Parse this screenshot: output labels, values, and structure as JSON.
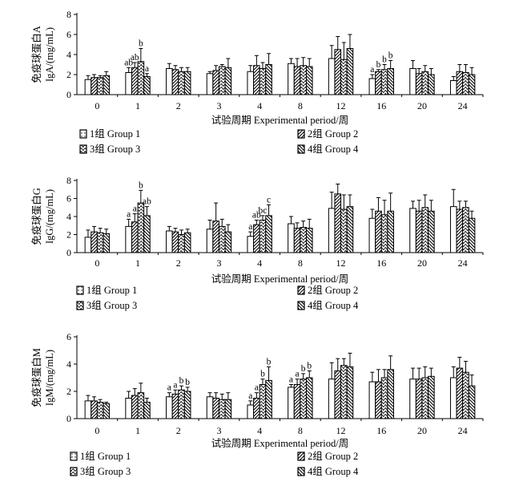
{
  "legend": [
    {
      "label": "1组  Group 1"
    },
    {
      "label": "2组  Group 2"
    },
    {
      "label": "3组  Group 3"
    },
    {
      "label": "4组  Group 4"
    }
  ],
  "chart_data": [
    {
      "type": "bar",
      "ylabel_cn": "免疫球蛋白A",
      "ylabel_en": "IgA/(mg/mL)",
      "xlabel": "试验周期  Experimental period/周",
      "ylim": [
        0,
        8
      ],
      "yticks": [
        0,
        2,
        4,
        6,
        8
      ],
      "categories": [
        "0",
        "1",
        "2",
        "3",
        "4",
        "8",
        "12",
        "16",
        "20",
        "24"
      ],
      "series": [
        {
          "name": "1组  Group 1",
          "values": [
            1.5,
            2.2,
            2.6,
            2.1,
            2.3,
            3.1,
            3.6,
            1.6,
            2.6,
            1.4
          ],
          "errors": [
            0.4,
            0.5,
            0.5,
            0.2,
            0.6,
            0.5,
            1.3,
            0.4,
            0.8,
            0.4
          ],
          "sig": [
            "",
            "ab",
            "",
            "",
            "",
            "",
            "",
            "a",
            "",
            ""
          ]
        },
        {
          "name": "2组  Group 2",
          "values": [
            1.7,
            2.7,
            2.5,
            2.4,
            2.9,
            2.8,
            4.5,
            2.3,
            2.1,
            2.3
          ],
          "errors": [
            0.3,
            0.5,
            0.4,
            0.5,
            1.0,
            0.8,
            1.3,
            0.2,
            0.5,
            0.7
          ],
          "sig": [
            "",
            "ab",
            "",
            "",
            "",
            "",
            "",
            "b",
            "",
            ""
          ]
        },
        {
          "name": "3组  Group 3",
          "values": [
            1.7,
            3.3,
            2.3,
            2.8,
            2.6,
            2.9,
            3.5,
            2.5,
            2.3,
            2.2
          ],
          "errors": [
            0.2,
            1.3,
            0.4,
            0.2,
            0.6,
            0.8,
            1.7,
            0.5,
            0.6,
            0.8
          ],
          "sig": [
            "",
            "b",
            "",
            "",
            "",
            "",
            "",
            "b",
            "",
            ""
          ]
        },
        {
          "name": "4组  Group 4",
          "values": [
            1.9,
            1.8,
            2.3,
            2.7,
            3.0,
            2.8,
            4.6,
            2.6,
            2.0,
            2.0
          ],
          "errors": [
            0.4,
            0.3,
            0.4,
            0.9,
            1.1,
            0.8,
            1.4,
            0.8,
            0.6,
            0.7
          ],
          "sig": [
            "",
            "a",
            "",
            "",
            "",
            "",
            "",
            "b",
            "",
            ""
          ]
        }
      ]
    },
    {
      "type": "bar",
      "ylabel_cn": "免疫球蛋白G",
      "ylabel_en": "IgG/(mg/mL)",
      "xlabel": "试验周期  Experimental period/周",
      "ylim": [
        0,
        8
      ],
      "yticks": [
        0,
        2,
        4,
        6,
        8
      ],
      "categories": [
        "0",
        "1",
        "2",
        "3",
        "4",
        "8",
        "12",
        "16",
        "20",
        "24"
      ],
      "series": [
        {
          "name": "1组  Group 1",
          "values": [
            1.7,
            2.9,
            2.4,
            2.6,
            1.8,
            3.2,
            4.9,
            3.8,
            4.9,
            5.1
          ],
          "errors": [
            0.8,
            0.8,
            0.5,
            1.0,
            0.5,
            0.8,
            1.8,
            1.0,
            0.8,
            1.9
          ],
          "sig": [
            "",
            "a",
            "",
            "",
            "a",
            "",
            "",
            "",
            "",
            ""
          ]
        },
        {
          "name": "2组  Group 2",
          "values": [
            2.3,
            3.4,
            2.3,
            3.5,
            3.1,
            2.7,
            6.5,
            4.6,
            4.6,
            4.8
          ],
          "errors": [
            0.6,
            0.9,
            0.4,
            2.0,
            0.5,
            0.6,
            1.1,
            1.5,
            1.2,
            0.9
          ],
          "sig": [
            "",
            "a",
            "",
            "",
            "ab",
            "",
            "",
            "",
            "",
            ""
          ]
        },
        {
          "name": "3组  Group 3",
          "values": [
            2.2,
            5.5,
            2.0,
            2.9,
            3.6,
            2.8,
            4.8,
            4.2,
            5.0,
            5.0
          ],
          "errors": [
            0.5,
            1.4,
            0.5,
            0.8,
            0.5,
            0.7,
            1.6,
            1.6,
            1.4,
            0.7
          ],
          "sig": [
            "",
            "b",
            "",
            "",
            "bc",
            "",
            "",
            "",
            "",
            ""
          ]
        },
        {
          "name": "4组  Group 4",
          "values": [
            2.1,
            4.1,
            2.2,
            2.3,
            4.1,
            2.7,
            5.1,
            4.6,
            4.6,
            3.8
          ],
          "errors": [
            0.5,
            1.0,
            0.4,
            0.8,
            1.2,
            1.0,
            1.3,
            2.0,
            1.2,
            0.8
          ],
          "sig": [
            "",
            "ab",
            "",
            "",
            "c",
            "",
            "",
            "",
            "",
            ""
          ]
        }
      ]
    },
    {
      "type": "bar",
      "ylabel_cn": "免疫球蛋白M",
      "ylabel_en": "IgM/(mg/mL)",
      "xlabel": "试验周期  Experimental period/周",
      "ylim": [
        0,
        6
      ],
      "yticks": [
        0,
        2,
        4,
        6
      ],
      "categories": [
        "0",
        "1",
        "2",
        "3",
        "4",
        "8",
        "12",
        "16",
        "20",
        "24"
      ],
      "series": [
        {
          "name": "1组  Group 1",
          "values": [
            1.3,
            1.5,
            1.6,
            1.6,
            1.0,
            2.3,
            2.9,
            2.7,
            2.9,
            3.0
          ],
          "errors": [
            0.4,
            0.5,
            0.3,
            0.3,
            0.3,
            0.2,
            1.2,
            0.7,
            0.8,
            0.8
          ],
          "sig": [
            "",
            "",
            "a",
            "",
            "a",
            "a",
            "",
            "",
            "",
            ""
          ]
        },
        {
          "name": "2组  Group 2",
          "values": [
            1.3,
            1.7,
            1.8,
            1.5,
            1.5,
            2.5,
            3.5,
            2.7,
            2.9,
            3.7
          ],
          "errors": [
            0.3,
            0.5,
            0.3,
            0.4,
            0.4,
            0.4,
            0.9,
            0.9,
            0.8,
            0.8
          ],
          "sig": [
            "",
            "",
            "a",
            "",
            "a",
            "a",
            "",
            "",
            "",
            ""
          ]
        },
        {
          "name": "3组  Group 3",
          "values": [
            1.2,
            1.9,
            2.1,
            1.4,
            2.5,
            2.9,
            3.9,
            3.0,
            3.0,
            3.4
          ],
          "errors": [
            0.2,
            0.7,
            0.3,
            0.4,
            0.4,
            0.4,
            0.5,
            0.6,
            0.8,
            0.8
          ],
          "sig": [
            "",
            "",
            "b",
            "",
            "b",
            "b",
            "",
            "",
            "",
            ""
          ]
        },
        {
          "name": "4组  Group 4",
          "values": [
            1.1,
            1.2,
            2.0,
            1.4,
            2.8,
            3.0,
            3.8,
            3.6,
            3.1,
            2.4
          ],
          "errors": [
            0.1,
            0.3,
            0.3,
            0.5,
            1.0,
            0.5,
            1.0,
            1.0,
            0.6,
            0.8
          ],
          "sig": [
            "",
            "",
            "b",
            "",
            "b",
            "b",
            "",
            "",
            "",
            ""
          ]
        }
      ]
    }
  ]
}
